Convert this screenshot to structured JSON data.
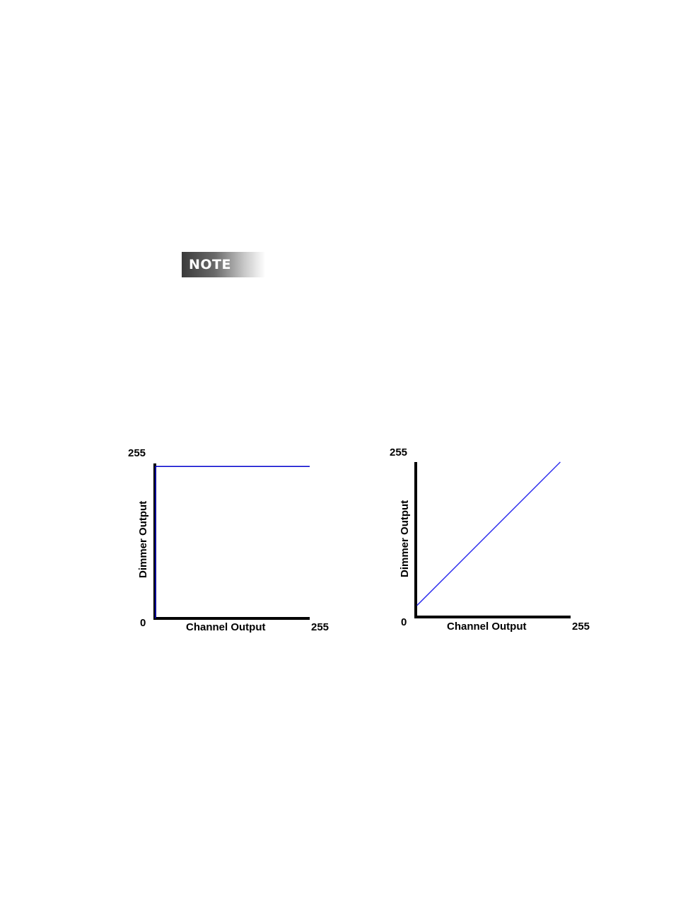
{
  "note": {
    "label": "NOTE"
  },
  "chart_data": [
    {
      "type": "line",
      "xlabel": "Channel Output",
      "ylabel": "Dimmer Output",
      "xlim": [
        0,
        255
      ],
      "ylim": [
        0,
        255
      ],
      "x_tick_labels": [
        "255"
      ],
      "y_tick_labels": [
        "0",
        "255"
      ],
      "grid": false,
      "line_color": "#0000cc",
      "series": [
        {
          "x": [
            1,
            1,
            255
          ],
          "y": [
            0,
            250,
            250
          ]
        }
      ]
    },
    {
      "type": "line",
      "xlabel": "Channel Output",
      "ylabel": "Dimmer Output",
      "xlim": [
        0,
        255
      ],
      "ylim": [
        0,
        255
      ],
      "x_tick_labels": [
        "255"
      ],
      "y_tick_labels": [
        "0",
        "255"
      ],
      "grid": false,
      "line_color": "#3333ee",
      "series": [
        {
          "x": [
            2,
            238
          ],
          "y": [
            19,
            255
          ]
        }
      ]
    }
  ]
}
